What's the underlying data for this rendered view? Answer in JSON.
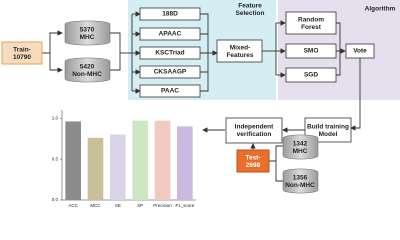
{
  "panels": {
    "feature": "Feature\nSelection",
    "algorithm": "Algorithm"
  },
  "nodes": {
    "train": [
      "Train-",
      "10790"
    ],
    "mhc": [
      "5370",
      "MHC"
    ],
    "nonmhc": [
      "5420",
      "Non-MHC"
    ],
    "f188d": [
      "188D"
    ],
    "apaac": [
      "APAAC"
    ],
    "ksctriad": [
      "KSCTriad"
    ],
    "cksaagp": [
      "CKSAAGP"
    ],
    "paac": [
      "PAAC"
    ],
    "mixed": [
      "Mixed-",
      "Features"
    ],
    "rf": [
      "Random",
      "Forest"
    ],
    "smo": [
      "SMO"
    ],
    "sgd": [
      "SGD"
    ],
    "vote": [
      "Vote"
    ],
    "build": [
      "Build training",
      "Model"
    ],
    "indep": [
      "Independent",
      "verification"
    ],
    "test": [
      "Test-",
      "2698"
    ],
    "tmhc": [
      "1342",
      "MHC"
    ],
    "tnonmhc": [
      "1356",
      "Non-MHC"
    ]
  },
  "chart_data": {
    "type": "bar",
    "categories": [
      "ACC",
      "MCC",
      "SE",
      "SP",
      "Precision",
      "F1_score"
    ],
    "values": [
      0.96,
      0.76,
      0.8,
      0.97,
      0.97,
      0.9
    ],
    "colors": [
      "#8c8c8c",
      "#c9bf9a",
      "#d8d3e8",
      "#cfe6c4",
      "#f2c9bf",
      "#cbb9e0"
    ],
    "ylim": [
      0,
      1.1
    ],
    "yticks": [
      {
        "value": 0,
        "label": "0.0"
      },
      {
        "value": 0.5,
        "label": "0.5"
      },
      {
        "value": 1,
        "label": "1.0"
      }
    ]
  }
}
